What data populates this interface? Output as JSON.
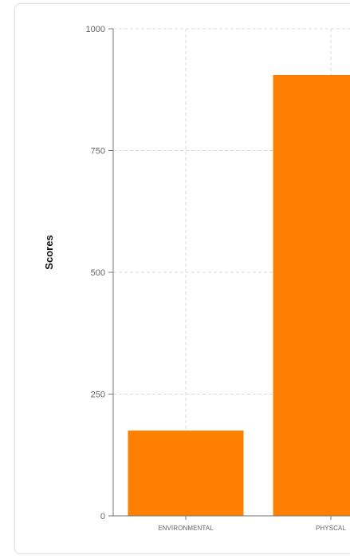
{
  "chart_data": {
    "type": "bar",
    "categories": [
      "ENVIRONMENTAL",
      "PHYSCAL"
    ],
    "values": [
      175,
      905
    ],
    "ylabel": "Scores",
    "xlabel": "",
    "ylim": [
      0,
      1000
    ],
    "yticks": [
      "0",
      "250",
      "500",
      "750",
      "1000"
    ],
    "grid": true,
    "bar_color": "#ff8000",
    "grid_color": "#d9d9d9",
    "axis_color": "#777777"
  }
}
